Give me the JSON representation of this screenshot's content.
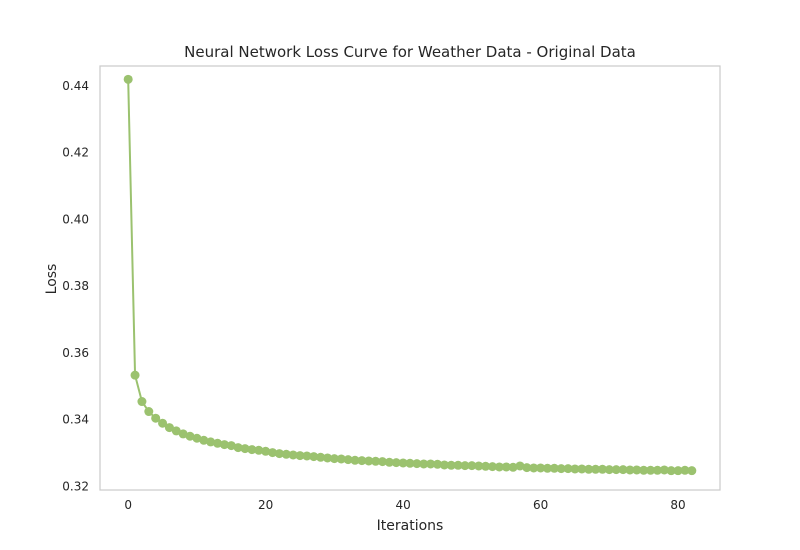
{
  "chart_data": {
    "type": "line",
    "title": "Neural Network Loss Curve for Weather Data - Original Data",
    "xlabel": "Iterations",
    "ylabel": "Loss",
    "xlim": [
      -4.1,
      86.1
    ],
    "ylim": [
      0.3188,
      0.4458
    ],
    "xticks": [
      0,
      20,
      40,
      60,
      80
    ],
    "xtick_labels": [
      "0",
      "20",
      "40",
      "60",
      "80"
    ],
    "yticks": [
      0.32,
      0.34,
      0.36,
      0.38,
      0.4,
      0.42,
      0.44
    ],
    "ytick_labels": [
      "0.32",
      "0.34",
      "0.36",
      "0.38",
      "0.40",
      "0.42",
      "0.44"
    ],
    "grid": false,
    "legend": false,
    "series": [
      {
        "color": "#9bc26f",
        "marker": "circle",
        "x": [
          0,
          1,
          2,
          3,
          4,
          5,
          6,
          7,
          8,
          9,
          10,
          11,
          12,
          13,
          14,
          15,
          16,
          17,
          18,
          19,
          20,
          21,
          22,
          23,
          24,
          25,
          26,
          27,
          28,
          29,
          30,
          31,
          32,
          33,
          34,
          35,
          36,
          37,
          38,
          39,
          40,
          41,
          42,
          43,
          44,
          45,
          46,
          47,
          48,
          49,
          50,
          51,
          52,
          53,
          54,
          55,
          56,
          57,
          58,
          59,
          60,
          61,
          62,
          63,
          64,
          65,
          66,
          67,
          68,
          69,
          70,
          71,
          72,
          73,
          74,
          75,
          76,
          77,
          78,
          79,
          80,
          81,
          82
        ],
        "y": [
          0.4418,
          0.3532,
          0.3453,
          0.3423,
          0.3403,
          0.3388,
          0.3375,
          0.3365,
          0.3356,
          0.3349,
          0.3343,
          0.3337,
          0.3332,
          0.3328,
          0.3324,
          0.3321,
          0.3315,
          0.3312,
          0.3309,
          0.3307,
          0.3304,
          0.33,
          0.3297,
          0.3295,
          0.3293,
          0.3291,
          0.329,
          0.3288,
          0.3286,
          0.3284,
          0.3282,
          0.3281,
          0.3279,
          0.3277,
          0.3276,
          0.3275,
          0.3274,
          0.3273,
          0.3271,
          0.327,
          0.3269,
          0.3268,
          0.3267,
          0.3266,
          0.3266,
          0.3265,
          0.3263,
          0.3262,
          0.3262,
          0.3261,
          0.3261,
          0.326,
          0.3259,
          0.3258,
          0.3257,
          0.3257,
          0.3256,
          0.326,
          0.3255,
          0.3254,
          0.3254,
          0.3253,
          0.3253,
          0.3252,
          0.3252,
          0.3251,
          0.3251,
          0.325,
          0.325,
          0.325,
          0.3249,
          0.3249,
          0.3249,
          0.3248,
          0.3248,
          0.3247,
          0.3247,
          0.3247,
          0.3248,
          0.3246,
          0.3246,
          0.3247,
          0.3246
        ]
      }
    ]
  }
}
